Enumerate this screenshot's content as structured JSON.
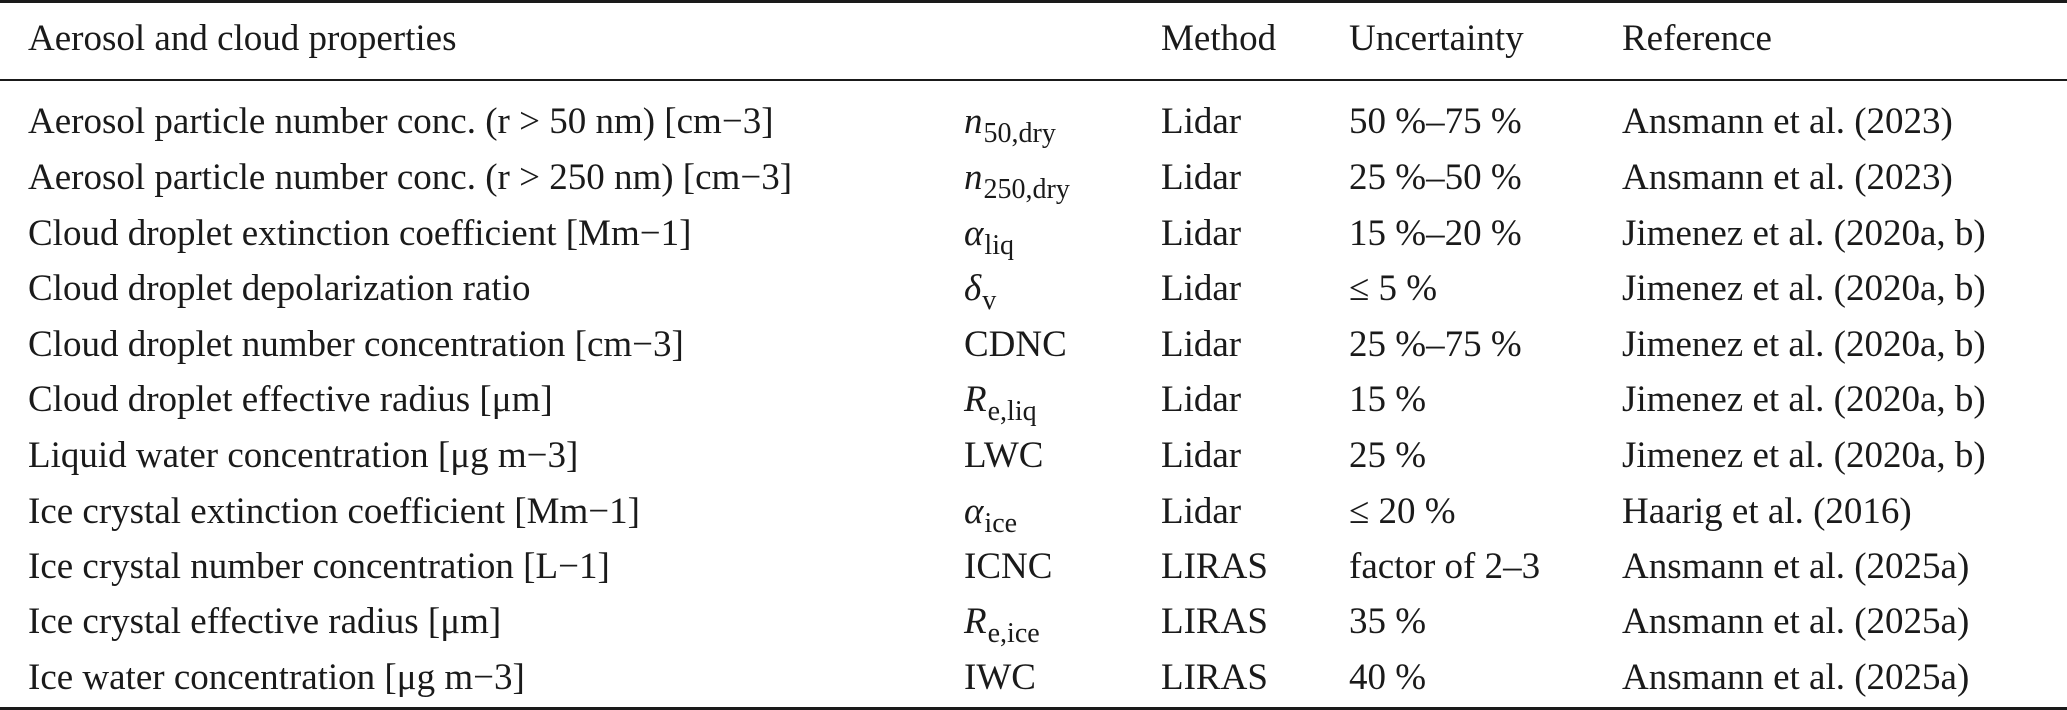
{
  "table": {
    "headers": {
      "property": "Aerosol and cloud properties",
      "method": "Method",
      "uncertainty": "Uncertainty",
      "reference": "Reference"
    },
    "rows": [
      {
        "property": "Aerosol particle number conc. (r > 50 nm) [cm−3]",
        "symbol": {
          "base": "n",
          "sub": "50,dry",
          "italic": true
        },
        "method": "Lidar",
        "uncertainty": "50 %–75 %",
        "reference": "Ansmann et al. (2023)"
      },
      {
        "property": "Aerosol particle number conc. (r > 250 nm) [cm−3]",
        "symbol": {
          "base": "n",
          "sub": "250,dry",
          "italic": true
        },
        "method": "Lidar",
        "uncertainty": "25 %–50 %",
        "reference": "Ansmann et al. (2023)"
      },
      {
        "property": "Cloud droplet extinction coefficient [Mm−1]",
        "symbol": {
          "base": "α",
          "sub": "liq",
          "italic": true
        },
        "method": "Lidar",
        "uncertainty": "15 %–20 %",
        "reference": "Jimenez et al. (2020a, b)"
      },
      {
        "property": "Cloud droplet depolarization ratio",
        "symbol": {
          "base": "δ",
          "sub": "v",
          "italic": true
        },
        "method": "Lidar",
        "uncertainty": "≤ 5 %",
        "reference": "Jimenez et al. (2020a, b)"
      },
      {
        "property": "Cloud droplet number concentration [cm−3]",
        "symbol": {
          "base": "CDNC",
          "sub": "",
          "italic": false
        },
        "method": "Lidar",
        "uncertainty": "25 %–75 %",
        "reference": "Jimenez et al. (2020a, b)"
      },
      {
        "property": "Cloud droplet effective radius [μm]",
        "symbol": {
          "base": "R",
          "sub": "e,liq",
          "italic": true
        },
        "method": "Lidar",
        "uncertainty": "15 %",
        "reference": "Jimenez et al. (2020a, b)"
      },
      {
        "property": "Liquid water concentration [μg m−3]",
        "symbol": {
          "base": "LWC",
          "sub": "",
          "italic": false
        },
        "method": "Lidar",
        "uncertainty": "25 %",
        "reference": "Jimenez et al. (2020a, b)"
      },
      {
        "property": "Ice crystal extinction coefficient [Mm−1]",
        "symbol": {
          "base": "α",
          "sub": "ice",
          "italic": true
        },
        "method": "Lidar",
        "uncertainty": "≤ 20 %",
        "reference": "Haarig et al. (2016)"
      },
      {
        "property": "Ice crystal number concentration [L−1]",
        "symbol": {
          "base": "ICNC",
          "sub": "",
          "italic": false
        },
        "method": "LIRAS",
        "uncertainty": "factor of 2–3",
        "reference": "Ansmann et al. (2025a)"
      },
      {
        "property": "Ice crystal effective radius [μm]",
        "symbol": {
          "base": "R",
          "sub": "e,ice",
          "italic": true
        },
        "method": "LIRAS",
        "uncertainty": "35 %",
        "reference": "Ansmann et al. (2025a)"
      },
      {
        "property": "Ice water concentration [μg m−3]",
        "symbol": {
          "base": "IWC",
          "sub": "",
          "italic": false
        },
        "method": "LIRAS",
        "uncertainty": "40 %",
        "reference": "Ansmann et al. (2025a)"
      }
    ]
  }
}
